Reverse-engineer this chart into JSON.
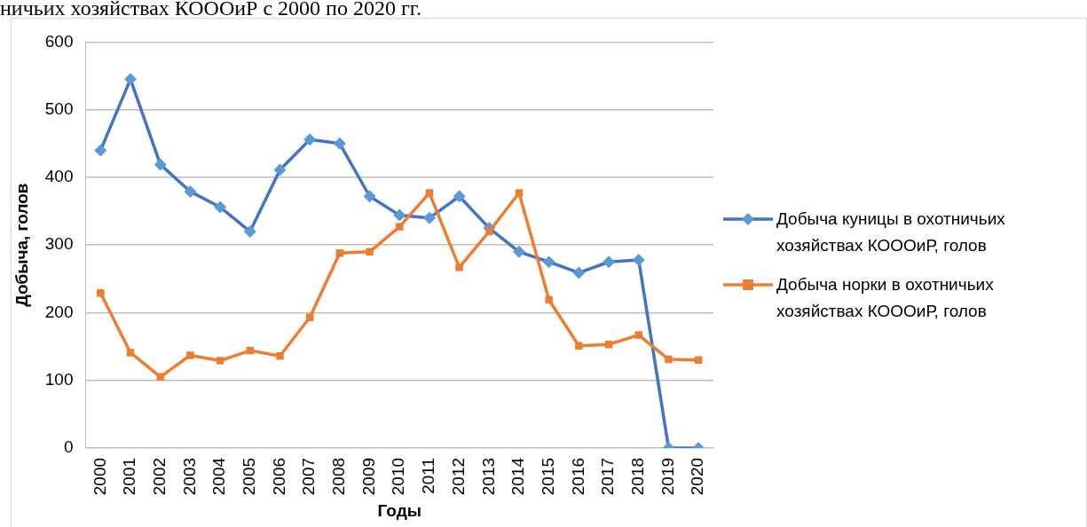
{
  "chart_data": {
    "type": "line",
    "title": "ничьих хозяйствах КОООиР с 2000 по 2020 гг.",
    "xlabel": "Годы",
    "ylabel": "Добыча, голов",
    "categories": [
      "2000",
      "2001",
      "2002",
      "2003",
      "2004",
      "2005",
      "2006",
      "2007",
      "2008",
      "2009",
      "2010",
      "2011",
      "2012",
      "2013",
      "2014",
      "2015",
      "2016",
      "2017",
      "2018",
      "2019",
      "2020"
    ],
    "series": [
      {
        "name": "Добыча куницы в охотничьих хозяйствах КОООиР, голов",
        "color": "#4472c4",
        "marker": "diamond",
        "values": [
          440,
          545,
          419,
          379,
          356,
          320,
          411,
          456,
          450,
          372,
          344,
          340,
          372,
          325,
          290,
          275,
          259,
          275,
          278,
          0,
          0
        ]
      },
      {
        "name": "Добыча норки в охотничьих хозяйствах КОООиР, голов",
        "color": "#ed7d31",
        "marker": "square",
        "values": [
          229,
          141,
          105,
          137,
          129,
          144,
          136,
          193,
          288,
          290,
          327,
          377,
          267,
          320,
          377,
          219,
          151,
          153,
          167,
          131,
          130
        ]
      }
    ],
    "ylim": [
      0,
      600
    ],
    "yticks": [
      0,
      100,
      200,
      300,
      400,
      500,
      600
    ],
    "grid": "y",
    "legend": "right",
    "line_style": "solid"
  }
}
